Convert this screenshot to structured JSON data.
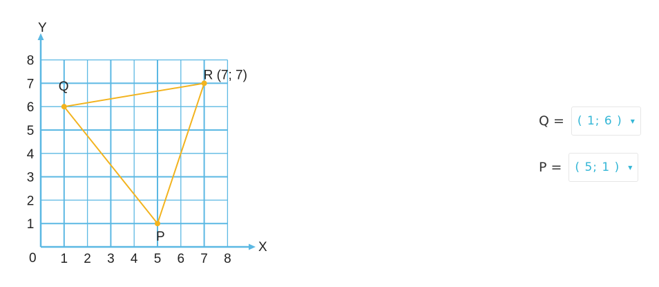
{
  "diagram": {
    "axis_x_label": "X",
    "axis_y_label": "Y",
    "origin_label": "0",
    "x_ticks": [
      "1",
      "2",
      "3",
      "4",
      "5",
      "6",
      "7",
      "8"
    ],
    "y_ticks": [
      "1",
      "2",
      "3",
      "4",
      "5",
      "6",
      "7",
      "8"
    ],
    "grid_range": [
      0,
      8
    ],
    "colors": {
      "grid": "#5bb8e3",
      "triangle": "#f2b31e",
      "point": "#f2b31e"
    },
    "points": [
      {
        "label": "Q",
        "x": 1,
        "y": 6
      },
      {
        "label": "R (7; 7)",
        "x": 7,
        "y": 7
      },
      {
        "label": "P",
        "x": 5,
        "y": 1
      }
    ]
  },
  "answers": [
    {
      "label": "Q =",
      "value": "( 1; 6 )"
    },
    {
      "label": "P =",
      "value": "( 5; 1 )"
    }
  ]
}
